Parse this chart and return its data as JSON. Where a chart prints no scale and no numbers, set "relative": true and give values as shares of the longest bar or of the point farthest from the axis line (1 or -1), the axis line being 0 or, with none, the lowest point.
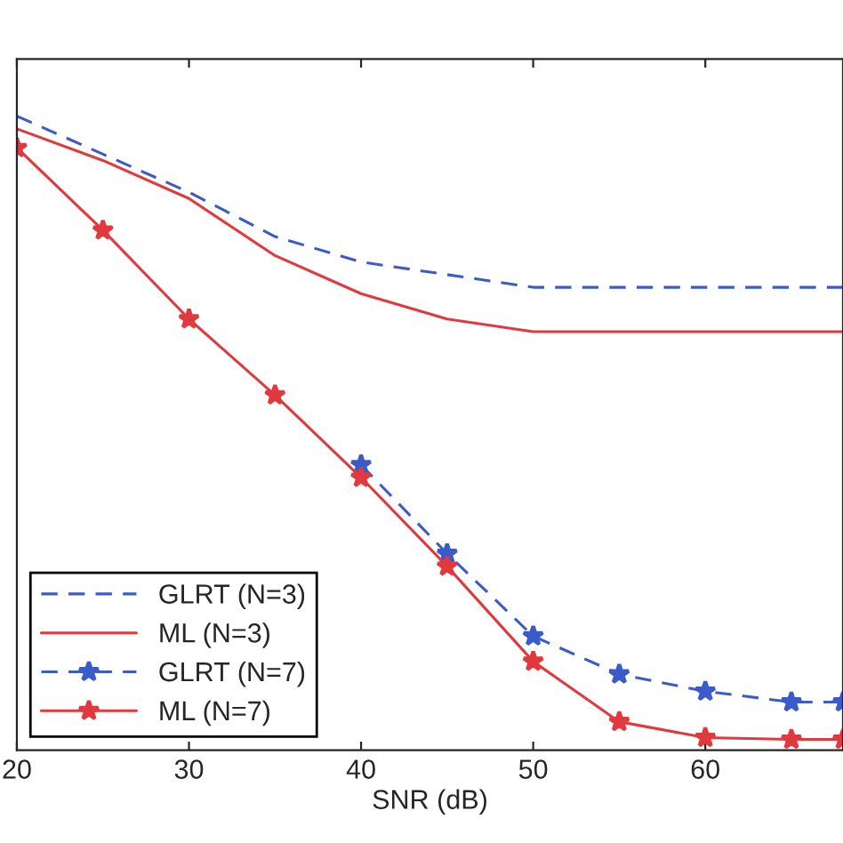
{
  "chart_data": {
    "type": "line",
    "xlabel": "SNR (dB)",
    "relative": true,
    "xlim": [
      20,
      68
    ],
    "xticks": [
      20,
      30,
      40,
      50,
      60
    ],
    "tick_labels": "x",
    "legend": "bottom left",
    "grid": false,
    "x": [
      20,
      25,
      30,
      35,
      40,
      45,
      50,
      55,
      60,
      65,
      68
    ],
    "series": [
      {
        "name": "GLRT (N=3)",
        "color": "#3b5bc8",
        "line_style": "dashed",
        "marker": "none",
        "values": [
          1,
          0.94,
          0.88,
          0.81,
          0.77,
          0.75,
          0.73,
          0.73,
          0.73,
          0.73,
          0.73
        ]
      },
      {
        "name": "ML (N=3)",
        "color": "#e0393e",
        "line_style": "solid",
        "marker": "none",
        "values": [
          0.98,
          0.93,
          0.87,
          0.78,
          0.72,
          0.68,
          0.66,
          0.66,
          0.66,
          0.66,
          0.66
        ]
      },
      {
        "name": "GLRT (N=7)",
        "color": "#3b5bc8",
        "line_style": "dashed",
        "marker": "star",
        "values": [
          null,
          null,
          null,
          null,
          0.45,
          0.31,
          0.18,
          0.12,
          0.093,
          0.076,
          0.076
        ]
      },
      {
        "name": "ML (N=7)",
        "color": "#e0393e",
        "line_style": "solid",
        "marker": "star",
        "values": [
          0.95,
          0.82,
          0.68,
          0.56,
          0.43,
          0.29,
          0.14,
          0.045,
          0.02,
          0.017,
          0.017
        ]
      }
    ]
  }
}
